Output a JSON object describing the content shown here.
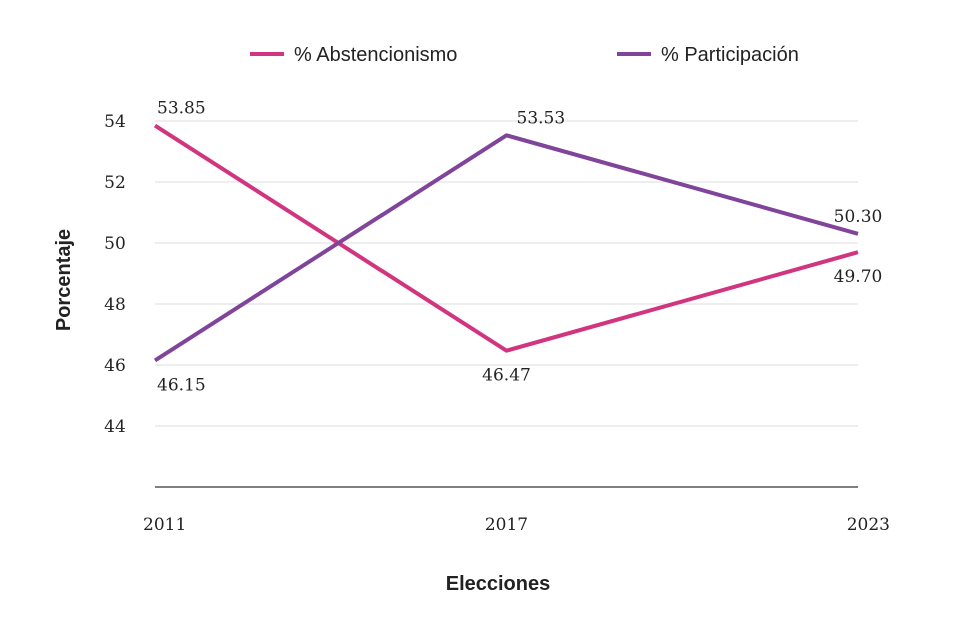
{
  "chart_data": {
    "type": "line",
    "title": "",
    "xlabel": "Elecciones",
    "ylabel": "Porcentaje",
    "categories": [
      "2011",
      "2017",
      "2023"
    ],
    "ylim": [
      42,
      54
    ],
    "yticks": [
      44,
      46,
      48,
      50,
      52,
      54
    ],
    "grid": true,
    "legend_position": "top",
    "series": [
      {
        "name": "% Abstencionismo",
        "color": "#d1357f",
        "values": [
          53.85,
          46.47,
          49.7
        ],
        "labels": [
          "53.85",
          "46.47",
          "49.70"
        ]
      },
      {
        "name": "% Participación",
        "color": "#80449a",
        "values": [
          46.15,
          53.53,
          50.3
        ],
        "labels": [
          "46.15",
          "53.53",
          "50.30"
        ]
      }
    ]
  }
}
